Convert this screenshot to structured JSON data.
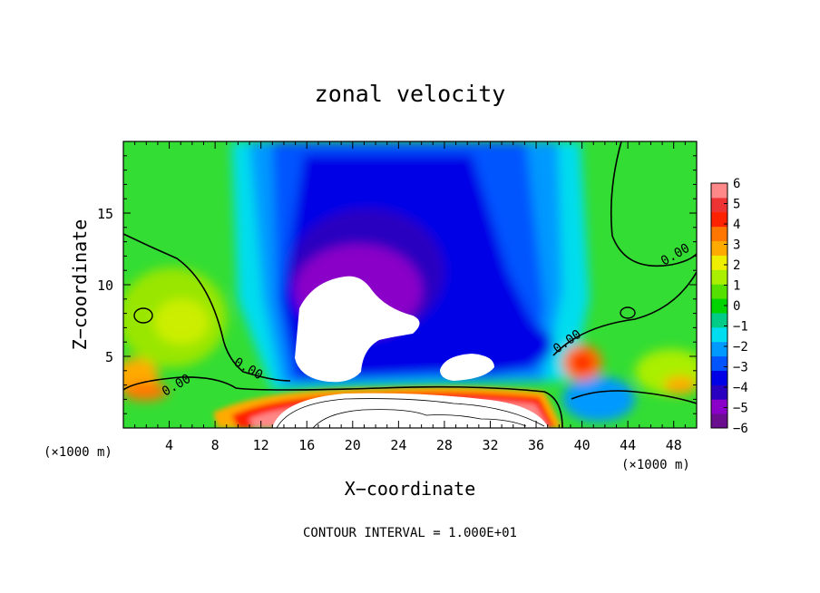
{
  "chart_data": {
    "type": "heatmap",
    "title": "zonal velocity",
    "xlabel": "X−coordinate",
    "ylabel": "Z−coordinate",
    "x_unit_label": "(×1000 m)",
    "y_unit_label": "(×1000 m)",
    "footer": "CONTOUR INTERVAL = 1.000E+01",
    "xlim": [
      0,
      50
    ],
    "ylim": [
      0,
      20
    ],
    "x_ticks": [
      "4",
      "8",
      "12",
      "16",
      "20",
      "24",
      "28",
      "32",
      "36",
      "40",
      "44",
      "48"
    ],
    "y_ticks": [
      "5",
      "10",
      "15"
    ],
    "colorbar": {
      "range": [
        -6,
        6
      ],
      "ticks": [
        "6",
        "5",
        "4",
        "3",
        "2",
        "1",
        "0",
        "−1",
        "−2",
        "−3",
        "−4",
        "−5",
        "−6"
      ],
      "colors": [
        "#6a0d8f",
        "#8a00c8",
        "#2a00c0",
        "#0000e6",
        "#0055ff",
        "#0099ff",
        "#00ddee",
        "#00cc88",
        "#00d400",
        "#55e000",
        "#aaee00",
        "#eeee00",
        "#ffaa00",
        "#ff7700",
        "#ff2200",
        "#ee3333",
        "#ff8888"
      ]
    },
    "contour_labels": [
      "0.00",
      "0.00",
      "0.00",
      "0.00"
    ]
  }
}
